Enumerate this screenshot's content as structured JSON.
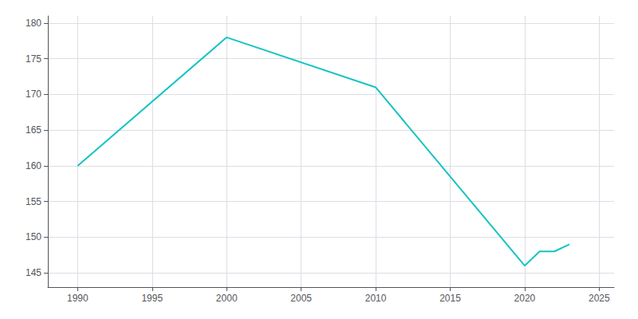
{
  "chart_data": {
    "type": "line",
    "x": [
      1990,
      2000,
      2010,
      2020,
      2021,
      2022,
      2023
    ],
    "values": [
      160,
      178,
      171,
      146,
      148,
      148,
      149
    ],
    "color": "#17c3c3",
    "xlim": [
      1988,
      2026
    ],
    "ylim": [
      143,
      181
    ],
    "xticks": [
      1990,
      1995,
      2000,
      2005,
      2010,
      2015,
      2020,
      2025
    ],
    "yticks": [
      145,
      150,
      155,
      160,
      165,
      170,
      175,
      180
    ],
    "grid": true
  }
}
